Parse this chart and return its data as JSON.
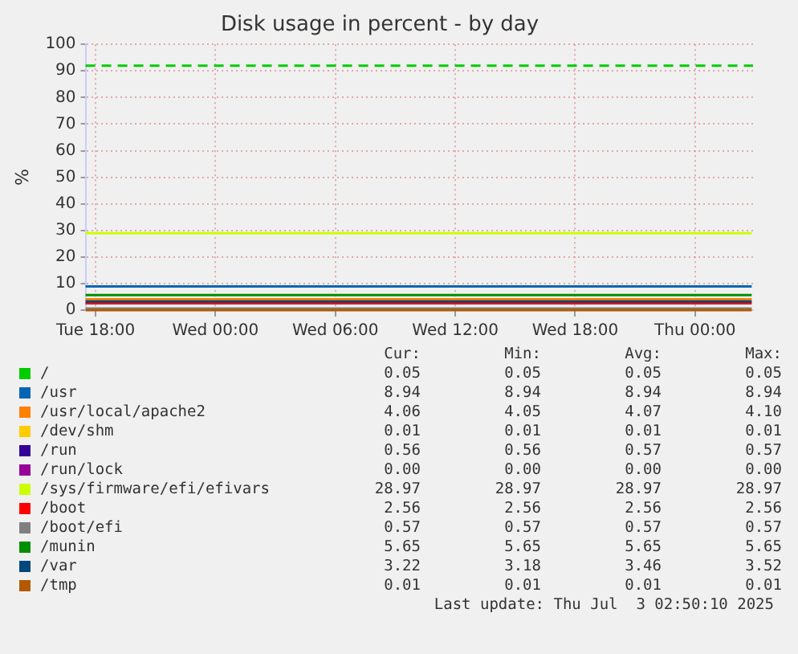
{
  "chart_data": {
    "type": "line",
    "title": "Disk usage in percent - by day",
    "ylabel": "%",
    "x": [
      "2025-07-01T17:30",
      "2025-07-03T02:50"
    ],
    "xlim": [
      "2025-07-01T17:30",
      "2025-07-03T02:54"
    ],
    "xticks": [
      {
        "value": "2025-07-01T18:00",
        "label": "Tue 18:00"
      },
      {
        "value": "2025-07-02T00:00",
        "label": "Wed 00:00"
      },
      {
        "value": "2025-07-02T06:00",
        "label": "Wed 06:00"
      },
      {
        "value": "2025-07-02T12:00",
        "label": "Wed 12:00"
      },
      {
        "value": "2025-07-02T18:00",
        "label": "Wed 18:00"
      },
      {
        "value": "2025-07-03T00:00",
        "label": "Thu 00:00"
      }
    ],
    "ylim": [
      0,
      100
    ],
    "yticks": [
      0,
      10,
      20,
      30,
      40,
      50,
      60,
      70,
      80,
      90,
      100
    ],
    "grid": true,
    "legend": "bottom",
    "marker": "none",
    "line_style": "solid",
    "ref_lines": [
      {
        "axis": "y",
        "value": 92,
        "color": "#00cc00",
        "line_style": "dashed"
      }
    ],
    "series": [
      {
        "name": "/",
        "color": "#00cc00",
        "values": [
          null,
          null
        ]
      },
      {
        "name": "/usr",
        "color": "#0066b3",
        "values": [
          8.94,
          8.94
        ]
      },
      {
        "name": "/usr/local/apache2",
        "color": "#ff8000",
        "values": [
          4.06,
          4.06
        ]
      },
      {
        "name": "/dev/shm",
        "color": "#ffcc00",
        "values": [
          null,
          null
        ]
      },
      {
        "name": "/run",
        "color": "#330099",
        "values": [
          null,
          null
        ]
      },
      {
        "name": "/run/lock",
        "color": "#990099",
        "values": [
          null,
          null
        ]
      },
      {
        "name": "/sys/firmware/efi/efivars",
        "color": "#ccff00",
        "values": [
          28.97,
          28.97
        ]
      },
      {
        "name": "/boot",
        "color": "#ff0000",
        "values": [
          2.56,
          2.56
        ]
      },
      {
        "name": "/boot/efi",
        "color": "#808080",
        "values": [
          0.57,
          0.57
        ]
      },
      {
        "name": "/munin",
        "color": "#008f00",
        "values": [
          5.65,
          5.65
        ]
      },
      {
        "name": "/var",
        "color": "#00487d",
        "values": [
          3.22,
          3.22
        ]
      },
      {
        "name": "/tmp",
        "color": "#b35a00",
        "values": [
          0.01,
          0.01
        ]
      }
    ],
    "annotations": [
      "Cur:",
      "Min:",
      "Avg:",
      "Max:",
      "0.05",
      "0.05",
      "0.05",
      "0.05",
      "8.94",
      "8.94",
      "8.94",
      "8.94",
      "4.06",
      "4.05",
      "4.07",
      "4.10",
      "0.01",
      "0.01",
      "0.01",
      "0.01",
      "0.56",
      "0.56",
      "0.57",
      "0.57",
      "0.00",
      "0.00",
      "0.00",
      "0.00",
      "28.97",
      "28.97",
      "28.97",
      "28.97",
      "2.56",
      "2.56",
      "2.56",
      "2.56",
      "0.57",
      "0.57",
      "0.57",
      "0.57",
      "5.65",
      "5.65",
      "5.65",
      "5.65",
      "3.22",
      "3.18",
      "3.46",
      "3.52",
      "0.01",
      "0.01",
      "0.01",
      "0.01",
      "Last update: Thu Jul  3 02:50:10 2025"
    ]
  }
}
